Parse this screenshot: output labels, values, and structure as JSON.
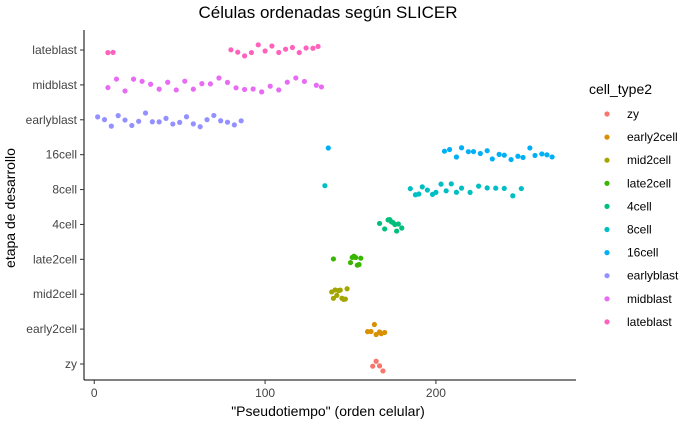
{
  "chart_data": {
    "type": "scatter",
    "title": "Células ordenadas según SLICER",
    "xlabel": "\"Pseudotiempo\" (orden celular)",
    "ylabel": "etapa de desarrollo",
    "xlim": [
      -6,
      282
    ],
    "x_ticks": [
      0,
      100,
      200
    ],
    "categories": [
      "zy",
      "early2cell",
      "mid2cell",
      "late2cell",
      "4cell",
      "8cell",
      "16cell",
      "earlyblast",
      "midblast",
      "lateblast"
    ],
    "grid": false,
    "legend_position": "right",
    "legend_title": "cell_type2",
    "series": [
      {
        "name": "zy",
        "color": "#F8766D",
        "x": [
          163,
          165,
          167,
          169
        ]
      },
      {
        "name": "early2cell",
        "color": "#D89000",
        "x": [
          160,
          162,
          164,
          165,
          167,
          168,
          170
        ]
      },
      {
        "name": "mid2cell",
        "color": "#A3A500",
        "x": [
          139,
          140,
          141,
          142,
          143,
          144,
          145,
          146,
          147,
          148
        ]
      },
      {
        "name": "late2cell",
        "color": "#39B600",
        "x": [
          140,
          150,
          151,
          152,
          153,
          154,
          155,
          156
        ]
      },
      {
        "name": "4cell",
        "color": "#00BF7D",
        "x": [
          167,
          170,
          172,
          173,
          174,
          175,
          176,
          177,
          178,
          180
        ]
      },
      {
        "name": "8cell",
        "color": "#00BFC4",
        "x": [
          135,
          185,
          188,
          190,
          192,
          195,
          198,
          200,
          203,
          206,
          209,
          212,
          215,
          220,
          225,
          230,
          235,
          240,
          245,
          250
        ]
      },
      {
        "name": "16cell",
        "color": "#00B0F6",
        "x": [
          137,
          205,
          208,
          212,
          215,
          219,
          222,
          226,
          230,
          233,
          237,
          240,
          244,
          248,
          251,
          255,
          258,
          262,
          265,
          268
        ]
      },
      {
        "name": "earlyblast",
        "color": "#9590FF",
        "x": [
          2,
          6,
          10,
          14,
          18,
          22,
          26,
          30,
          34,
          38,
          42,
          46,
          50,
          54,
          58,
          62,
          66,
          70,
          74,
          78,
          82,
          86
        ]
      },
      {
        "name": "midblast",
        "color": "#E76BF3",
        "x": [
          8,
          13,
          18,
          23,
          28,
          33,
          38,
          43,
          48,
          53,
          58,
          63,
          68,
          73,
          78,
          83,
          88,
          93,
          98,
          103,
          108,
          113,
          118,
          123,
          130,
          133
        ]
      },
      {
        "name": "lateblast",
        "color": "#FF62BC",
        "x": [
          8,
          11,
          80,
          84,
          88,
          92,
          96,
          100,
          104,
          108,
          112,
          116,
          120,
          124,
          128,
          131
        ]
      }
    ]
  }
}
